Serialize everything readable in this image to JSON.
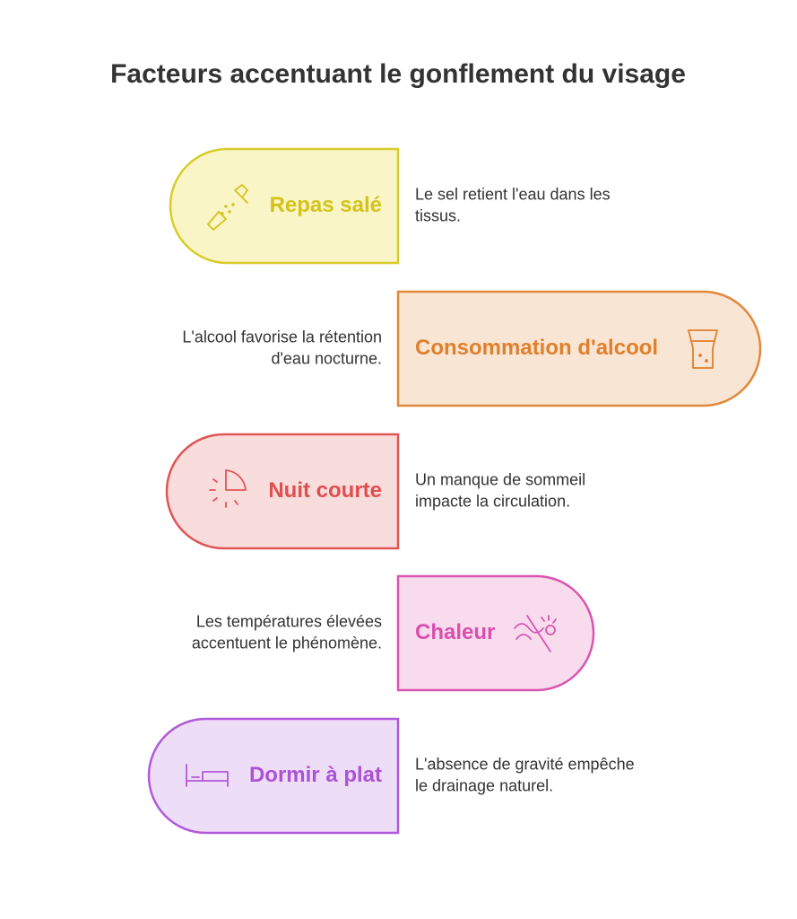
{
  "title": "Facteurs accentuant le gonflement du visage",
  "items": [
    {
      "label": "Repas salé",
      "description": [
        "Le sel retient l'eau dans les",
        "tissus."
      ]
    },
    {
      "label": "Consommation d'alcool",
      "description": [
        "L'alcool favorise la rétention",
        "d'eau nocturne."
      ]
    },
    {
      "label": "Nuit courte",
      "description": [
        "Un manque de sommeil",
        "impacte la circulation."
      ]
    },
    {
      "label": "Chaleur",
      "description": [
        "Les températures élevées",
        "accentuent le phénomène."
      ]
    },
    {
      "label": "Dormir à plat",
      "description": [
        "L'absence de gravité empêche",
        "le drainage naturel."
      ]
    }
  ]
}
